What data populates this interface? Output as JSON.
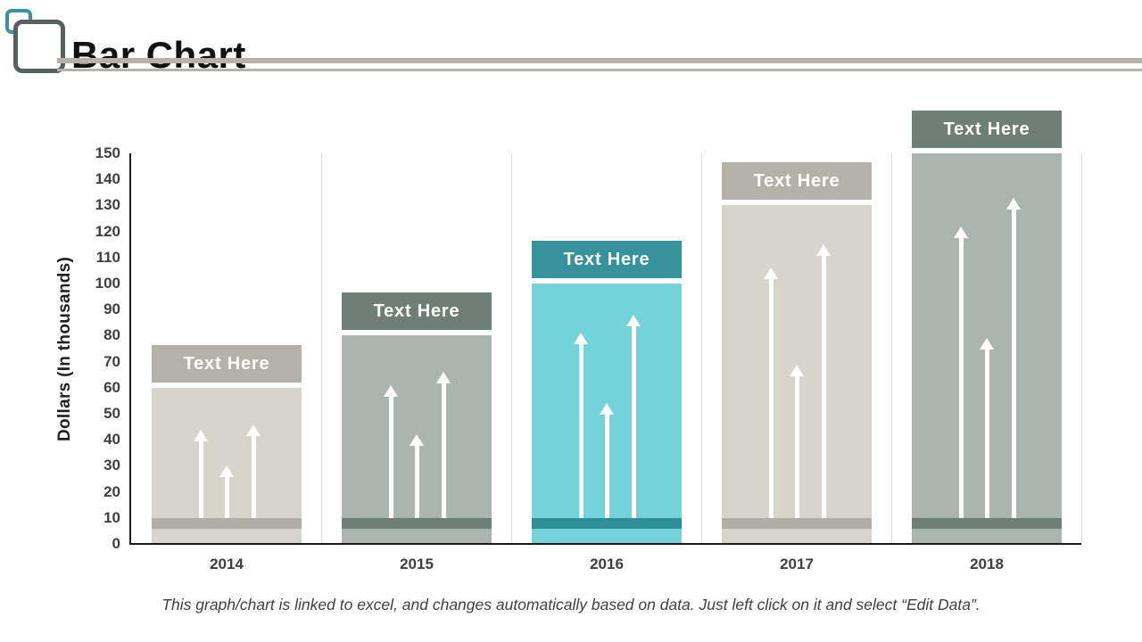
{
  "slide": {
    "title": "Bar Chart",
    "footer_note": "This graph/chart is linked to excel, and changes automatically based on data. Just left click on it and select “Edit Data”.",
    "icon": {
      "name": "overlapping-rounded-squares",
      "teal_color": "#3a939b",
      "gray_color": "#595f5e"
    },
    "divider_color": "#b4b3ab"
  },
  "chart_data": {
    "type": "bar",
    "title": "",
    "categories": [
      "2014",
      "2015",
      "2016",
      "2017",
      "2018"
    ],
    "values": [
      60,
      80,
      100,
      130,
      150
    ],
    "bar_value_label": "Text Here",
    "ylabel": "Dollars (In thousands)",
    "xlabel": "",
    "ylim": [
      0,
      150
    ],
    "ytick_step": 10,
    "legend": "none",
    "grid": "vertical category separators only",
    "baseline_band_value": 10,
    "arrow_annotations": [
      [
        44,
        30,
        46
      ],
      [
        61,
        42,
        66
      ],
      [
        81,
        54,
        88
      ],
      [
        106,
        69,
        115
      ],
      [
        122,
        79,
        133
      ]
    ],
    "category_styles": [
      {
        "bar_fill": "#d6d4cb",
        "label_bg": "#b3b1a8",
        "band_fill": "#b0aea5"
      },
      {
        "bar_fill": "#a9b5ae",
        "label_bg": "#6e7f77",
        "band_fill": "#6e7f77"
      },
      {
        "bar_fill": "#74d3d9",
        "label_bg": "#37939b",
        "band_fill": "#2e8f97"
      },
      {
        "bar_fill": "#d6d4cb",
        "label_bg": "#b3b1a8",
        "band_fill": "#b0aea5"
      },
      {
        "bar_fill": "#a9b5ae",
        "label_bg": "#6e7f77",
        "band_fill": "#6e7f77"
      }
    ],
    "axis_color": "#1a1a1a",
    "tick_label_color": "#3f3f3f",
    "arrow_color": "#ffffff"
  }
}
